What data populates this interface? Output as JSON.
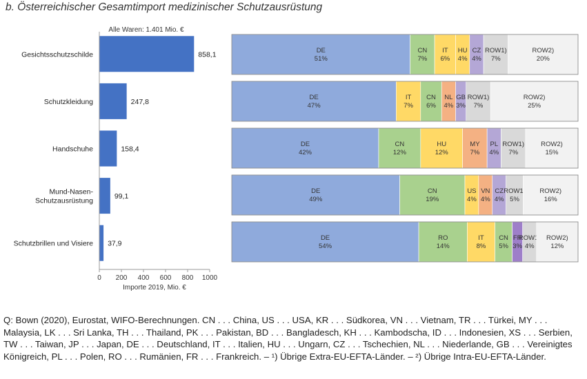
{
  "title": "b.  Österreichischer Gesamtimport medizinischer Schutzausrüstung",
  "source": "Q: Bown (2020), Eurostat, WIFO-Berechnungen. CN . . . China, US . . . USA, KR . . . Südkorea, VN . . . Vietnam, TR . . . Türkei, MY . . . Malaysia, LK . . . Sri Lanka, TH . . . Thailand, PK . . . Pakistan, BD . . . Bangladesch, KH . . . Kambodscha, ID . . . Indonesien, XS . . . Serbien, TW . . . Taiwan, JP . . . Japan, DE . . . Deutschland, IT . . . Italien, HU . . . Ungarn, CZ . . . Tschechien, NL . . . Niederlande, GB . . . Vereinigtes Königreich, PL . . . Polen, RO . . . Rumänien, FR . . . Frankreich. – ¹) Übrige Extra-EU-EFTA-Länder. – ²) Übrige Intra-EU-EFTA-Länder.",
  "colors": {
    "bar": "#4472c4",
    "DE": "#8faadc",
    "CN": "#a9d18e",
    "IT": "#ffd966",
    "HU": "#ffd966",
    "US": "#ffd966",
    "RO": "#a9d18e",
    "CZ": "#b4a7d6",
    "NL": "#f4b183",
    "GB": "#b4a7d6",
    "MY": "#f4b183",
    "PL": "#b4a7d6",
    "VN": "#f4b183",
    "FR": "#9e7fc9",
    "ROW1": "#d9d9d9",
    "ROW2": "#f2f2f2"
  },
  "chart_data": [
    {
      "type": "bar",
      "orientation": "horizontal",
      "annotation": "Alle Waren: 1.401 Mio. €",
      "categories": [
        "Gesichtsschutzschilde",
        "Schutzkleidung",
        "Handschuhe",
        "Mund-Nasen-Schutzausrüstung",
        "Schutzbrillen und Visiere"
      ],
      "category_lines": [
        [
          "Gesichtsschutzschilde"
        ],
        [
          "Schutzkleidung"
        ],
        [
          "Handschuhe"
        ],
        [
          "Mund-Nasen-",
          "Schutzausrüstung"
        ],
        [
          "Schutzbrillen und Visiere"
        ]
      ],
      "values": [
        858.1,
        247.8,
        158.4,
        99.1,
        37.9
      ],
      "value_labels": [
        "858,1",
        "247,8",
        "158,4",
        "99,1",
        "37,9"
      ],
      "xlabel": "Importe 2019, Mio. €",
      "xlim": [
        0,
        1000
      ],
      "xticks": [
        0,
        200,
        400,
        600,
        800,
        1000
      ],
      "grid": false
    },
    {
      "type": "bar",
      "orientation": "horizontal",
      "stacked": true,
      "unit": "%",
      "categories": [
        "Gesichtsschutzschilde",
        "Schutzkleidung",
        "Handschuhe",
        "Mund-Nasen-Schutzausrüstung",
        "Schutzbrillen und Visiere"
      ],
      "rows": [
        [
          {
            "c": "DE",
            "v": 51,
            "l": "DE",
            "p": "51%"
          },
          {
            "c": "CN",
            "v": 7,
            "l": "CN",
            "p": "7%"
          },
          {
            "c": "IT",
            "v": 6,
            "l": "IT",
            "p": "6%"
          },
          {
            "c": "HU",
            "v": 4,
            "l": "HU",
            "p": "4%"
          },
          {
            "c": "CZ",
            "v": 4,
            "l": "CZ",
            "p": "4%"
          },
          {
            "c": "ROW1",
            "v": 7,
            "l": "ROW1)",
            "p": "7%"
          },
          {
            "c": "ROW2",
            "v": 20,
            "l": "ROW2)",
            "p": "20%"
          }
        ],
        [
          {
            "c": "DE",
            "v": 47,
            "l": "DE",
            "p": "47%"
          },
          {
            "c": "IT",
            "v": 7,
            "l": "IT",
            "p": "7%"
          },
          {
            "c": "CN",
            "v": 6,
            "l": "CN",
            "p": "6%"
          },
          {
            "c": "NL",
            "v": 4,
            "l": "NL",
            "p": "4%"
          },
          {
            "c": "GB",
            "v": 3,
            "l": "GB",
            "p": "3%"
          },
          {
            "c": "ROW1",
            "v": 7,
            "l": "ROW1)",
            "p": "7%"
          },
          {
            "c": "ROW2",
            "v": 25,
            "l": "ROW2)",
            "p": "25%"
          }
        ],
        [
          {
            "c": "DE",
            "v": 42,
            "l": "DE",
            "p": "42%"
          },
          {
            "c": "CN",
            "v": 12,
            "l": "CN",
            "p": "12%"
          },
          {
            "c": "HU",
            "v": 12,
            "l": "HU",
            "p": "12%"
          },
          {
            "c": "MY",
            "v": 7,
            "l": "MY",
            "p": "7%"
          },
          {
            "c": "PL",
            "v": 4,
            "l": "PL",
            "p": "4%"
          },
          {
            "c": "ROW1",
            "v": 7,
            "l": "ROW1)",
            "p": "7%"
          },
          {
            "c": "ROW2",
            "v": 15,
            "l": "ROW2)",
            "p": "15%"
          }
        ],
        [
          {
            "c": "DE",
            "v": 49,
            "l": "DE",
            "p": "49%"
          },
          {
            "c": "CN",
            "v": 19,
            "l": "CN",
            "p": "19%"
          },
          {
            "c": "US",
            "v": 4,
            "l": "US",
            "p": "4%"
          },
          {
            "c": "VN",
            "v": 4,
            "l": "VN",
            "p": "4%"
          },
          {
            "c": "CZ",
            "v": 4,
            "l": "CZ",
            "p": "4%"
          },
          {
            "c": "ROW1",
            "v": 5,
            "l": "ROW1)",
            "p": "5%"
          },
          {
            "c": "ROW2",
            "v": 16,
            "l": "ROW2)",
            "p": "16%"
          }
        ],
        [
          {
            "c": "DE",
            "v": 54,
            "l": "DE",
            "p": "54%"
          },
          {
            "c": "RO",
            "v": 14,
            "l": "RO",
            "p": "14%"
          },
          {
            "c": "IT",
            "v": 8,
            "l": "IT",
            "p": "8%"
          },
          {
            "c": "CN",
            "v": 5,
            "l": "CN",
            "p": "5%"
          },
          {
            "c": "FR",
            "v": 3,
            "l": "FR",
            "p": "3%"
          },
          {
            "c": "ROW1",
            "v": 4,
            "l": "ROW1)",
            "p": "4%"
          },
          {
            "c": "ROW2",
            "v": 12,
            "l": "ROW2)",
            "p": "12%"
          }
        ]
      ]
    }
  ]
}
